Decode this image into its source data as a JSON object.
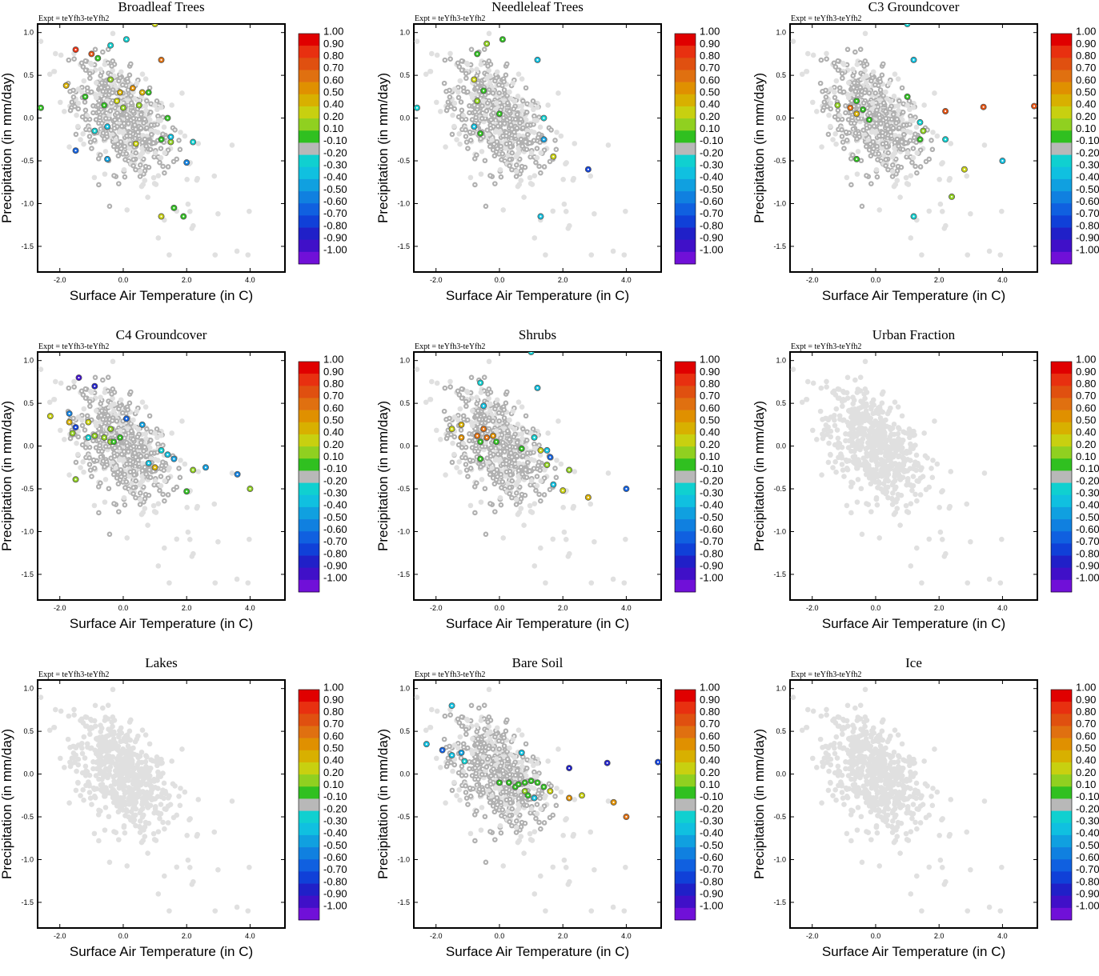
{
  "figure": {
    "expt_label": "Expt = teYfh3-teYfh2",
    "xlabel": "Surface Air Temperature (in C)",
    "ylabel": "Precipitation (in mm/day)",
    "xlim": [
      -2.7,
      5.1
    ],
    "ylim": [
      -1.8,
      1.1
    ],
    "x_ticks": [
      "-2.0",
      "0.0",
      "2.0",
      "4.0"
    ],
    "x_tick_values": [
      -2.0,
      0.0,
      2.0,
      4.0
    ],
    "y_ticks": [
      "1.0",
      "0.5",
      "0.0",
      "-0.5",
      "-1.0",
      "-1.5"
    ],
    "y_tick_values": [
      1.0,
      0.5,
      0.0,
      -0.5,
      -1.0,
      -1.5
    ],
    "colorbar_labels": [
      "1.00",
      "0.90",
      "0.80",
      "0.70",
      "0.60",
      "0.50",
      "0.40",
      "0.20",
      "0.10",
      "-0.10",
      "-0.20",
      "-0.30",
      "-0.40",
      "-0.50",
      "-0.60",
      "-0.70",
      "-0.80",
      "-0.90",
      "-1.00"
    ],
    "colorbar_colors": [
      "#e00000",
      "#e83010",
      "#e05010",
      "#e07010",
      "#e09000",
      "#d8b000",
      "#c8d010",
      "#90d020",
      "#30c020",
      "#b8b8b8",
      "#10d0d0",
      "#10c0e0",
      "#10a0e0",
      "#1080e0",
      "#1060e0",
      "#1040d8",
      "#2020c8",
      "#4010c8",
      "#7010d8"
    ],
    "colors": {
      "background_point": "#e0e0e0",
      "neutral_point": "#b0b0b0",
      "frame": "#000000"
    }
  },
  "chart_data": [
    {
      "type": "scatter",
      "title": "Broadleaf Trees",
      "xlabel": "Surface Air Temperature (in C)",
      "ylabel": "Precipitation (in mm/day)",
      "colored_points": [
        {
          "x": -2.6,
          "y": 0.12,
          "v": 0.15
        },
        {
          "x": -1.5,
          "y": 0.8,
          "v": 0.9
        },
        {
          "x": -1.0,
          "y": 0.75,
          "v": 0.85
        },
        {
          "x": -0.8,
          "y": 0.7,
          "v": 0.1
        },
        {
          "x": -0.4,
          "y": 0.85,
          "v": -0.2
        },
        {
          "x": 0.1,
          "y": 0.92,
          "v": -0.25
        },
        {
          "x": 1.0,
          "y": 1.1,
          "v": 0.4
        },
        {
          "x": 1.2,
          "y": 0.68,
          "v": 0.65
        },
        {
          "x": -1.8,
          "y": 0.38,
          "v": 0.45
        },
        {
          "x": -1.2,
          "y": 0.25,
          "v": 0.15
        },
        {
          "x": -0.4,
          "y": 0.45,
          "v": 0.2
        },
        {
          "x": -0.2,
          "y": 0.2,
          "v": 0.35
        },
        {
          "x": -0.6,
          "y": 0.15,
          "v": 0.15
        },
        {
          "x": -0.1,
          "y": 0.3,
          "v": 0.5
        },
        {
          "x": 0.3,
          "y": 0.35,
          "v": 0.6
        },
        {
          "x": 0.5,
          "y": 0.15,
          "v": 0.2
        },
        {
          "x": 0.6,
          "y": 0.3,
          "v": 0.45
        },
        {
          "x": 0.0,
          "y": 0.12,
          "v": 0.2
        },
        {
          "x": 0.8,
          "y": 0.3,
          "v": 0.15
        },
        {
          "x": -0.9,
          "y": -0.15,
          "v": -0.2
        },
        {
          "x": -0.5,
          "y": -0.1,
          "v": -0.3
        },
        {
          "x": 1.4,
          "y": 0.0,
          "v": 0.15
        },
        {
          "x": 1.2,
          "y": -0.25,
          "v": 0.15
        },
        {
          "x": 1.5,
          "y": -0.28,
          "v": 0.2
        },
        {
          "x": 0.4,
          "y": -0.3,
          "v": 0.4
        },
        {
          "x": 1.5,
          "y": -0.22,
          "v": -0.3
        },
        {
          "x": 2.2,
          "y": -0.28,
          "v": -0.2
        },
        {
          "x": 2.0,
          "y": -0.52,
          "v": -0.5
        },
        {
          "x": -1.5,
          "y": -0.38,
          "v": -0.6
        },
        {
          "x": -0.5,
          "y": -0.48,
          "v": -0.4
        },
        {
          "x": 1.6,
          "y": -1.05,
          "v": 0.15
        },
        {
          "x": 1.2,
          "y": -1.15,
          "v": 0.35
        },
        {
          "x": 1.9,
          "y": -1.15,
          "v": 0.15
        }
      ]
    },
    {
      "type": "scatter",
      "title": "Needleleaf Trees",
      "colored_points": [
        {
          "x": -2.6,
          "y": 0.12,
          "v": -0.2
        },
        {
          "x": 0.1,
          "y": 0.92,
          "v": 0.15
        },
        {
          "x": -0.4,
          "y": 0.87,
          "v": 0.2
        },
        {
          "x": -0.7,
          "y": 0.75,
          "v": 0.15
        },
        {
          "x": 1.2,
          "y": 0.68,
          "v": -0.3
        },
        {
          "x": -0.8,
          "y": 0.45,
          "v": 0.4
        },
        {
          "x": -0.5,
          "y": 0.32,
          "v": 0.15
        },
        {
          "x": -0.7,
          "y": 0.2,
          "v": 0.2
        },
        {
          "x": 0.0,
          "y": 0.05,
          "v": 0.15
        },
        {
          "x": -0.8,
          "y": -0.1,
          "v": -0.3
        },
        {
          "x": -0.6,
          "y": -0.18,
          "v": 0.15
        },
        {
          "x": 1.4,
          "y": 0.0,
          "v": -0.2
        },
        {
          "x": 1.4,
          "y": -0.25,
          "v": -0.4
        },
        {
          "x": 1.7,
          "y": -0.45,
          "v": 0.4
        },
        {
          "x": 2.8,
          "y": -0.6,
          "v": -0.7
        },
        {
          "x": 1.3,
          "y": -1.15,
          "v": -0.3
        }
      ]
    },
    {
      "type": "scatter",
      "title": "C3 Groundcover",
      "colored_points": [
        {
          "x": 1.0,
          "y": 1.1,
          "v": -0.2
        },
        {
          "x": 1.2,
          "y": 0.68,
          "v": -0.3
        },
        {
          "x": -1.2,
          "y": 0.15,
          "v": 0.2
        },
        {
          "x": -0.8,
          "y": 0.12,
          "v": 0.7
        },
        {
          "x": -0.6,
          "y": 0.05,
          "v": 0.45
        },
        {
          "x": -0.4,
          "y": 0.1,
          "v": 0.15
        },
        {
          "x": -0.6,
          "y": 0.2,
          "v": 0.15
        },
        {
          "x": -0.2,
          "y": -0.02,
          "v": 0.15
        },
        {
          "x": 1.0,
          "y": 0.25,
          "v": 0.15
        },
        {
          "x": 1.4,
          "y": -0.05,
          "v": -0.2
        },
        {
          "x": 2.2,
          "y": 0.08,
          "v": 0.85
        },
        {
          "x": 3.4,
          "y": 0.13,
          "v": 0.85
        },
        {
          "x": 5.0,
          "y": 0.14,
          "v": 0.85
        },
        {
          "x": 1.5,
          "y": -0.15,
          "v": 0.3
        },
        {
          "x": 1.4,
          "y": -0.25,
          "v": 0.15
        },
        {
          "x": 2.2,
          "y": -0.25,
          "v": -0.2
        },
        {
          "x": 4.0,
          "y": -0.5,
          "v": -0.3
        },
        {
          "x": -0.6,
          "y": -0.48,
          "v": 0.15
        },
        {
          "x": 2.8,
          "y": -0.6,
          "v": 0.4
        },
        {
          "x": 2.4,
          "y": -0.92,
          "v": 0.2
        },
        {
          "x": 1.2,
          "y": -1.15,
          "v": -0.2
        }
      ]
    },
    {
      "type": "scatter",
      "title": "C4 Groundcover",
      "colored_points": [
        {
          "x": -1.4,
          "y": 0.8,
          "v": -0.9
        },
        {
          "x": -0.9,
          "y": 0.7,
          "v": -0.8
        },
        {
          "x": -2.3,
          "y": 0.35,
          "v": 0.4
        },
        {
          "x": -1.7,
          "y": 0.38,
          "v": -0.5
        },
        {
          "x": -1.7,
          "y": 0.28,
          "v": 0.5
        },
        {
          "x": -1.6,
          "y": 0.15,
          "v": 0.3
        },
        {
          "x": -1.5,
          "y": 0.22,
          "v": -0.7
        },
        {
          "x": -1.1,
          "y": 0.1,
          "v": -0.2
        },
        {
          "x": -1.1,
          "y": 0.28,
          "v": 0.4
        },
        {
          "x": -0.9,
          "y": 0.12,
          "v": 0.3
        },
        {
          "x": -0.6,
          "y": 0.1,
          "v": 0.3
        },
        {
          "x": -0.4,
          "y": 0.05,
          "v": 0.3
        },
        {
          "x": -0.4,
          "y": 0.2,
          "v": 0.2
        },
        {
          "x": -0.3,
          "y": 0.05,
          "v": 0.15
        },
        {
          "x": -0.1,
          "y": 0.1,
          "v": 0.15
        },
        {
          "x": 0.1,
          "y": 0.32,
          "v": -0.6
        },
        {
          "x": 0.6,
          "y": 0.25,
          "v": -0.4
        },
        {
          "x": 0.8,
          "y": -0.2,
          "v": -0.3
        },
        {
          "x": 1.0,
          "y": -0.25,
          "v": 0.5
        },
        {
          "x": 1.2,
          "y": -0.05,
          "v": -0.2
        },
        {
          "x": 1.4,
          "y": -0.1,
          "v": -0.3
        },
        {
          "x": 1.6,
          "y": -0.15,
          "v": -0.4
        },
        {
          "x": 2.2,
          "y": -0.28,
          "v": 0.2
        },
        {
          "x": 2.6,
          "y": -0.25,
          "v": -0.4
        },
        {
          "x": 3.6,
          "y": -0.33,
          "v": -0.5
        },
        {
          "x": 4.0,
          "y": -0.5,
          "v": 0.3
        },
        {
          "x": 2.0,
          "y": -0.53,
          "v": 0.15
        },
        {
          "x": -1.5,
          "y": -0.39,
          "v": 0.3
        }
      ]
    },
    {
      "type": "scatter",
      "title": "Shrubs",
      "colored_points": [
        {
          "x": 1.0,
          "y": 1.1,
          "v": -0.2
        },
        {
          "x": -0.6,
          "y": 0.74,
          "v": -0.2
        },
        {
          "x": -0.5,
          "y": 0.47,
          "v": -0.3
        },
        {
          "x": 1.2,
          "y": 0.68,
          "v": -0.3
        },
        {
          "x": -1.2,
          "y": 0.25,
          "v": 0.45
        },
        {
          "x": -1.5,
          "y": 0.2,
          "v": 0.4
        },
        {
          "x": -1.2,
          "y": 0.1,
          "v": 0.55
        },
        {
          "x": -0.7,
          "y": 0.12,
          "v": 0.65
        },
        {
          "x": -0.5,
          "y": 0.2,
          "v": 0.65
        },
        {
          "x": -0.4,
          "y": 0.1,
          "v": 0.7
        },
        {
          "x": -0.2,
          "y": 0.12,
          "v": 0.6
        },
        {
          "x": -0.6,
          "y": 0.05,
          "v": 0.15
        },
        {
          "x": -0.1,
          "y": 0.05,
          "v": 0.15
        },
        {
          "x": 0.7,
          "y": -0.03,
          "v": 0.15
        },
        {
          "x": 1.1,
          "y": 0.1,
          "v": -0.2
        },
        {
          "x": 1.3,
          "y": -0.05,
          "v": 0.4
        },
        {
          "x": 1.5,
          "y": -0.05,
          "v": -0.3
        },
        {
          "x": 1.5,
          "y": -0.22,
          "v": 0.3
        },
        {
          "x": 1.6,
          "y": -0.13,
          "v": -0.6
        },
        {
          "x": 2.2,
          "y": -0.28,
          "v": 0.2
        },
        {
          "x": 1.7,
          "y": -0.45,
          "v": -0.3
        },
        {
          "x": 2.0,
          "y": -0.52,
          "v": 0.35
        },
        {
          "x": 2.8,
          "y": -0.6,
          "v": 0.45
        },
        {
          "x": 4.0,
          "y": -0.5,
          "v": -0.6
        },
        {
          "x": -0.6,
          "y": -0.15,
          "v": 0.15
        }
      ]
    },
    {
      "type": "scatter",
      "title": "Urban Fraction",
      "colored_points": []
    },
    {
      "type": "scatter",
      "title": "Lakes",
      "colored_points": []
    },
    {
      "type": "scatter",
      "title": "Bare Soil",
      "colored_points": [
        {
          "x": -1.5,
          "y": 0.8,
          "v": -0.3
        },
        {
          "x": -2.3,
          "y": 0.35,
          "v": -0.3
        },
        {
          "x": -1.8,
          "y": 0.28,
          "v": -0.6
        },
        {
          "x": -1.5,
          "y": 0.22,
          "v": -0.3
        },
        {
          "x": -1.2,
          "y": 0.25,
          "v": -0.4
        },
        {
          "x": -1.1,
          "y": 0.15,
          "v": -0.2
        },
        {
          "x": 0.7,
          "y": 0.25,
          "v": -0.3
        },
        {
          "x": 0.0,
          "y": -0.1,
          "v": 0.15
        },
        {
          "x": 0.3,
          "y": -0.1,
          "v": 0.15
        },
        {
          "x": 0.5,
          "y": -0.15,
          "v": 0.15
        },
        {
          "x": 0.6,
          "y": -0.12,
          "v": 0.15
        },
        {
          "x": 0.8,
          "y": -0.1,
          "v": 0.15
        },
        {
          "x": 1.0,
          "y": -0.08,
          "v": 0.15
        },
        {
          "x": 1.2,
          "y": -0.1,
          "v": 0.15
        },
        {
          "x": 0.8,
          "y": -0.2,
          "v": 0.2
        },
        {
          "x": 0.9,
          "y": -0.25,
          "v": 0.15
        },
        {
          "x": 1.4,
          "y": -0.15,
          "v": 0.15
        },
        {
          "x": 1.6,
          "y": -0.2,
          "v": 0.4
        },
        {
          "x": 1.1,
          "y": -0.28,
          "v": -0.3
        },
        {
          "x": 2.2,
          "y": -0.28,
          "v": 0.55
        },
        {
          "x": 2.6,
          "y": -0.25,
          "v": 0.35
        },
        {
          "x": 2.2,
          "y": 0.07,
          "v": -0.8
        },
        {
          "x": 3.4,
          "y": 0.13,
          "v": -0.8
        },
        {
          "x": 5.0,
          "y": 0.14,
          "v": -0.7
        },
        {
          "x": 3.6,
          "y": -0.33,
          "v": 0.6
        },
        {
          "x": 4.0,
          "y": -0.5,
          "v": 0.65
        }
      ]
    },
    {
      "type": "scatter",
      "title": "Ice",
      "colored_points": []
    }
  ]
}
